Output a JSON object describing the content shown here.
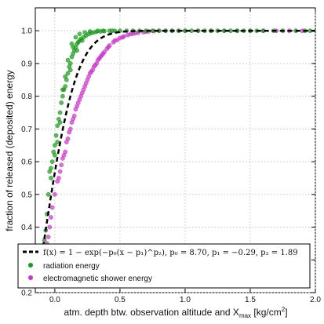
{
  "chart_data": {
    "type": "scatter",
    "xlabel": "atm. depth btw. observation altitude and X",
    "xlabel_sub": "max",
    "xlabel_unit": " [kg/cm",
    "xlabel_sup": "2",
    "xlabel_end": "]",
    "ylabel": "fraction of released (deposited) energy",
    "xlim": [
      -0.15,
      2.0
    ],
    "ylim": [
      0.2,
      1.07
    ],
    "grid": true,
    "legend_placement": "bottom",
    "x_ticks": [
      {
        "value": 0.0,
        "label": "0.0"
      },
      {
        "value": 0.5,
        "label": "0.5"
      },
      {
        "value": 1.0,
        "label": "1.0"
      },
      {
        "value": 1.5,
        "label": "1.5"
      },
      {
        "value": 2.0,
        "label": "2.0"
      }
    ],
    "y_ticks": [
      {
        "value": 0.2,
        "label": "0.2"
      },
      {
        "value": 0.3,
        "label": "0.3"
      },
      {
        "value": 0.4,
        "label": "0.4"
      },
      {
        "value": 0.5,
        "label": "0.5"
      },
      {
        "value": 0.6,
        "label": "0.6"
      },
      {
        "value": 0.7,
        "label": "0.7"
      },
      {
        "value": 0.8,
        "label": "0.8"
      },
      {
        "value": 0.9,
        "label": "0.9"
      },
      {
        "value": 1.0,
        "label": "1.0"
      }
    ],
    "fit": {
      "name": "f(x) = 1 − exp(−p₀(x − p₁)^p₂), p₀ = 8.70, p₁ = −0.29, p₂ = 1.89",
      "p0": 8.7,
      "p1": -0.29,
      "p2": 1.89,
      "x_start": -0.09,
      "x_end": 2.0,
      "color": "#000000",
      "style": "dashed"
    },
    "series": [
      {
        "name": "radiation energy",
        "color": "#1a9a1a",
        "points": [
          [
            -0.08,
            0.36
          ],
          [
            -0.07,
            0.39
          ],
          [
            -0.06,
            0.44
          ],
          [
            -0.05,
            0.5
          ],
          [
            -0.04,
            0.57
          ],
          [
            -0.03,
            0.58
          ],
          [
            -0.02,
            0.6
          ],
          [
            -0.01,
            0.63
          ],
          [
            0.0,
            0.65
          ],
          [
            0.01,
            0.68
          ],
          [
            0.02,
            0.71
          ],
          [
            0.03,
            0.73
          ],
          [
            0.04,
            0.75
          ],
          [
            0.05,
            0.78
          ],
          [
            0.06,
            0.8
          ],
          [
            0.07,
            0.82
          ],
          [
            0.08,
            0.83
          ],
          [
            0.09,
            0.85
          ],
          [
            0.1,
            0.87
          ],
          [
            0.11,
            0.89
          ],
          [
            0.12,
            0.9
          ],
          [
            0.13,
            0.92
          ],
          [
            0.14,
            0.93
          ],
          [
            0.15,
            0.94
          ],
          [
            0.16,
            0.95
          ],
          [
            0.17,
            0.96
          ],
          [
            0.18,
            0.965
          ],
          [
            0.19,
            0.97
          ],
          [
            0.2,
            0.975
          ],
          [
            0.22,
            0.98
          ],
          [
            0.24,
            0.985
          ],
          [
            0.26,
            0.99
          ],
          [
            0.28,
            0.993
          ],
          [
            0.3,
            0.995
          ],
          [
            0.32,
            0.997
          ],
          [
            0.35,
            0.998
          ],
          [
            0.38,
            0.999
          ],
          [
            0.42,
            1.0
          ],
          [
            0.46,
            1.0
          ],
          [
            0.5,
            1.0
          ],
          [
            0.55,
            1.0
          ],
          [
            0.6,
            1.0
          ],
          [
            0.65,
            1.0
          ],
          [
            0.7,
            1.0
          ],
          [
            0.75,
            1.0
          ],
          [
            0.8,
            1.0
          ],
          [
            0.85,
            1.0
          ],
          [
            0.9,
            1.0
          ],
          [
            0.95,
            1.0
          ],
          [
            1.0,
            1.0
          ],
          [
            1.05,
            1.0
          ],
          [
            1.1,
            1.0
          ],
          [
            1.15,
            1.0
          ],
          [
            1.2,
            1.0
          ],
          [
            1.25,
            1.0
          ],
          [
            1.3,
            1.0
          ],
          [
            1.35,
            1.0
          ],
          [
            1.4,
            1.0
          ],
          [
            1.45,
            1.0
          ],
          [
            1.5,
            1.0
          ],
          [
            1.55,
            1.0
          ],
          [
            1.6,
            1.0
          ],
          [
            1.68,
            1.0
          ],
          [
            1.75,
            1.0
          ],
          [
            1.85,
            1.0
          ],
          [
            1.92,
            1.0
          ],
          [
            1.96,
            1.0
          ],
          [
            0.12,
            0.88
          ],
          [
            0.14,
            0.95
          ],
          [
            0.17,
            0.94
          ],
          [
            0.21,
            0.97
          ],
          [
            0.08,
            0.86
          ],
          [
            0.06,
            0.82
          ],
          [
            0.04,
            0.72
          ],
          [
            0.02,
            0.66
          ],
          [
            0.0,
            0.62
          ],
          [
            -0.03,
            0.55
          ],
          [
            0.19,
            0.99
          ],
          [
            0.23,
            0.995
          ],
          [
            0.27,
            0.998
          ],
          [
            0.33,
            1.0
          ],
          [
            0.37,
            1.0
          ],
          [
            0.44,
            1.0
          ],
          [
            0.1,
            0.91
          ],
          [
            0.13,
            0.96
          ],
          [
            0.16,
            0.98
          ]
        ]
      },
      {
        "name": "electromagnetic shower energy",
        "color": "#cc33cc",
        "points": [
          [
            -0.07,
            0.33
          ],
          [
            -0.06,
            0.35
          ],
          [
            -0.05,
            0.37
          ],
          [
            -0.04,
            0.4
          ],
          [
            -0.03,
            0.43
          ],
          [
            -0.02,
            0.46
          ],
          [
            0.0,
            0.5
          ],
          [
            0.02,
            0.54
          ],
          [
            0.04,
            0.57
          ],
          [
            0.06,
            0.61
          ],
          [
            0.08,
            0.63
          ],
          [
            0.1,
            0.67
          ],
          [
            0.12,
            0.7
          ],
          [
            0.14,
            0.73
          ],
          [
            0.16,
            0.76
          ],
          [
            0.18,
            0.78
          ],
          [
            0.2,
            0.8
          ],
          [
            0.22,
            0.82
          ],
          [
            0.24,
            0.84
          ],
          [
            0.26,
            0.86
          ],
          [
            0.28,
            0.875
          ],
          [
            0.3,
            0.89
          ],
          [
            0.32,
            0.9
          ],
          [
            0.34,
            0.915
          ],
          [
            0.36,
            0.925
          ],
          [
            0.38,
            0.935
          ],
          [
            0.4,
            0.945
          ],
          [
            0.42,
            0.955
          ],
          [
            0.45,
            0.965
          ],
          [
            0.48,
            0.972
          ],
          [
            0.5,
            0.978
          ],
          [
            0.53,
            0.983
          ],
          [
            0.56,
            0.987
          ],
          [
            0.6,
            0.991
          ],
          [
            0.64,
            0.994
          ],
          [
            0.68,
            0.996
          ],
          [
            0.72,
            0.998
          ],
          [
            0.76,
            0.999
          ],
          [
            0.8,
            1.0
          ],
          [
            0.85,
            1.0
          ],
          [
            0.9,
            1.0
          ],
          [
            0.95,
            1.0
          ],
          [
            1.0,
            1.0
          ],
          [
            1.1,
            1.0
          ],
          [
            1.2,
            1.0
          ],
          [
            1.3,
            1.0
          ],
          [
            1.4,
            1.0
          ],
          [
            1.5,
            1.0
          ],
          [
            1.6,
            1.0
          ],
          [
            1.7,
            1.0
          ],
          [
            1.8,
            1.0
          ],
          [
            1.9,
            1.0
          ],
          [
            0.05,
            0.59
          ],
          [
            0.09,
            0.66
          ],
          [
            0.13,
            0.72
          ],
          [
            0.17,
            0.77
          ],
          [
            0.21,
            0.81
          ],
          [
            0.25,
            0.85
          ],
          [
            0.29,
            0.88
          ],
          [
            0.33,
            0.91
          ],
          [
            0.37,
            0.93
          ],
          [
            0.41,
            0.95
          ],
          [
            0.46,
            0.97
          ],
          [
            0.15,
            0.74
          ],
          [
            0.19,
            0.79
          ],
          [
            0.23,
            0.83
          ],
          [
            0.27,
            0.87
          ],
          [
            0.31,
            0.895
          ],
          [
            0.35,
            0.92
          ],
          [
            0.11,
            0.69
          ],
          [
            0.07,
            0.62
          ],
          [
            0.03,
            0.55
          ],
          [
            0.52,
            0.98
          ],
          [
            0.58,
            0.99
          ],
          [
            0.62,
            0.993
          ],
          [
            0.7,
            0.997
          ]
        ]
      }
    ]
  }
}
